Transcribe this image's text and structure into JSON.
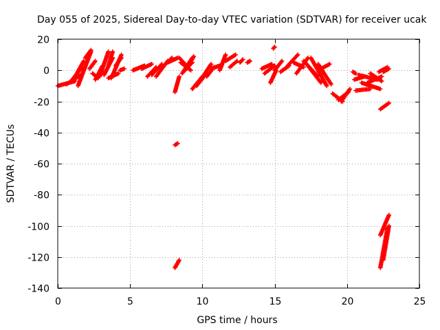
{
  "chart_data": {
    "type": "scatter",
    "title": "Day 055 of 2025, Sidereal Day-to-day VTEC variation (SDTVAR) for receiver ucak",
    "xlabel": "GPS time / hours",
    "ylabel": "SDTVAR / TECUs",
    "xlim": [
      0,
      25
    ],
    "ylim": [
      -140,
      20
    ],
    "xticks": [
      0,
      5,
      10,
      15,
      20,
      25
    ],
    "yticks": [
      -140,
      -120,
      -100,
      -80,
      -60,
      -40,
      -20,
      0,
      20
    ],
    "grid": true,
    "marker": "plus",
    "color": "#ff0000",
    "segments": [
      {
        "x0": 0.0,
        "x1": 1.2,
        "y0": -10,
        "y1": -7
      },
      {
        "x0": 0.6,
        "x1": 1.6,
        "y0": -9,
        "y1": -3
      },
      {
        "x0": 1.0,
        "x1": 1.7,
        "y0": -6,
        "y1": 2
      },
      {
        "x0": 1.4,
        "x1": 2.3,
        "y0": -10,
        "y1": 12
      },
      {
        "x0": 1.9,
        "x1": 2.3,
        "y0": 8,
        "y1": 13
      },
      {
        "x0": 1.2,
        "x1": 1.8,
        "y0": -4,
        "y1": 6
      },
      {
        "x0": 2.2,
        "x1": 2.6,
        "y0": 1,
        "y1": 6
      },
      {
        "x0": 2.4,
        "x1": 2.8,
        "y0": -2,
        "y1": -5
      },
      {
        "x0": 2.6,
        "x1": 3.1,
        "y0": -6,
        "y1": 3
      },
      {
        "x0": 2.9,
        "x1": 3.5,
        "y0": -4,
        "y1": 12
      },
      {
        "x0": 3.2,
        "x1": 3.8,
        "y0": -3,
        "y1": 8
      },
      {
        "x0": 3.5,
        "x1": 3.8,
        "y0": 3,
        "y1": 12
      },
      {
        "x0": 3.7,
        "x1": 4.4,
        "y0": -5,
        "y1": 10
      },
      {
        "x0": 4.0,
        "x1": 4.4,
        "y0": 3,
        "y1": 8
      },
      {
        "x0": 3.5,
        "x1": 4.2,
        "y0": -5,
        "y1": -2
      },
      {
        "x0": 4.3,
        "x1": 4.6,
        "y0": 0,
        "y1": 1
      },
      {
        "x0": 5.2,
        "x1": 6.0,
        "y0": 0,
        "y1": 3
      },
      {
        "x0": 5.8,
        "x1": 6.5,
        "y0": 1,
        "y1": 4
      },
      {
        "x0": 6.2,
        "x1": 6.8,
        "y0": -4,
        "y1": 2
      },
      {
        "x0": 6.5,
        "x1": 7.2,
        "y0": -3,
        "y1": 4
      },
      {
        "x0": 6.8,
        "x1": 7.6,
        "y0": -4,
        "y1": 6
      },
      {
        "x0": 7.1,
        "x1": 7.9,
        "y0": 1,
        "y1": 8
      },
      {
        "x0": 7.6,
        "x1": 8.3,
        "y0": 5,
        "y1": 8
      },
      {
        "x0": 8.4,
        "x1": 9.0,
        "y0": 8,
        "y1": 2
      },
      {
        "x0": 8.5,
        "x1": 9.2,
        "y0": 5,
        "y1": 0
      },
      {
        "x0": 8.6,
        "x1": 9.3,
        "y0": -2,
        "y1": 8
      },
      {
        "x0": 9.0,
        "x1": 9.4,
        "y0": 2,
        "y1": 9
      },
      {
        "x0": 8.8,
        "x1": 9.3,
        "y0": 0,
        "y1": 5
      },
      {
        "x0": 8.1,
        "x1": 8.4,
        "y0": -14,
        "y1": -4
      },
      {
        "x0": 8.1,
        "x1": 8.3,
        "y0": -48,
        "y1": -47
      },
      {
        "x0": 8.1,
        "x1": 8.4,
        "y0": -127,
        "y1": -122
      },
      {
        "x0": 9.3,
        "x1": 10.0,
        "y0": -12,
        "y1": -4
      },
      {
        "x0": 9.6,
        "x1": 10.3,
        "y0": -10,
        "y1": -2
      },
      {
        "x0": 9.9,
        "x1": 10.6,
        "y0": -6,
        "y1": 4
      },
      {
        "x0": 10.3,
        "x1": 10.8,
        "y0": -4,
        "y1": 2
      },
      {
        "x0": 10.6,
        "x1": 11.2,
        "y0": 1,
        "y1": 3
      },
      {
        "x0": 11.2,
        "x1": 11.6,
        "y0": 0,
        "y1": 10
      },
      {
        "x0": 11.6,
        "x1": 12.3,
        "y0": 6,
        "y1": 10
      },
      {
        "x0": 11.9,
        "x1": 12.4,
        "y0": 2,
        "y1": 6
      },
      {
        "x0": 12.6,
        "x1": 12.8,
        "y0": 5,
        "y1": 7
      },
      {
        "x0": 13.1,
        "x1": 13.3,
        "y0": 5,
        "y1": 6
      },
      {
        "x0": 14.1,
        "x1": 14.8,
        "y0": 1,
        "y1": 4
      },
      {
        "x0": 14.3,
        "x1": 15.0,
        "y0": -2,
        "y1": 3
      },
      {
        "x0": 14.7,
        "x1": 15.1,
        "y0": -8,
        "y1": 0
      },
      {
        "x0": 14.9,
        "x1": 15.0,
        "y0": 14,
        "y1": 15
      },
      {
        "x0": 15.0,
        "x1": 15.5,
        "y0": 0,
        "y1": 6
      },
      {
        "x0": 15.4,
        "x1": 16.0,
        "y0": -1,
        "y1": 3
      },
      {
        "x0": 15.9,
        "x1": 16.6,
        "y0": 3,
        "y1": 10
      },
      {
        "x0": 16.3,
        "x1": 17.0,
        "y0": 5,
        "y1": 2
      },
      {
        "x0": 16.5,
        "x1": 17.3,
        "y0": -2,
        "y1": 8
      },
      {
        "x0": 17.0,
        "x1": 18.0,
        "y0": 6,
        "y1": -4
      },
      {
        "x0": 17.2,
        "x1": 18.2,
        "y0": 4,
        "y1": -8
      },
      {
        "x0": 17.5,
        "x1": 18.6,
        "y0": 8,
        "y1": -10
      },
      {
        "x0": 18.0,
        "x1": 18.9,
        "y0": 4,
        "y1": -9
      },
      {
        "x0": 18.2,
        "x1": 18.8,
        "y0": 1,
        "y1": 4
      },
      {
        "x0": 19.0,
        "x1": 19.7,
        "y0": -15,
        "y1": -20
      },
      {
        "x0": 19.4,
        "x1": 20.1,
        "y0": -19,
        "y1": -14
      },
      {
        "x0": 19.6,
        "x1": 20.2,
        "y0": -20,
        "y1": -12
      },
      {
        "x0": 20.4,
        "x1": 20.6,
        "y0": -1,
        "y1": -2
      },
      {
        "x0": 20.5,
        "x1": 21.2,
        "y0": -6,
        "y1": -4
      },
      {
        "x0": 20.6,
        "x1": 21.6,
        "y0": -13,
        "y1": -12
      },
      {
        "x0": 21.0,
        "x1": 22.3,
        "y0": -8,
        "y1": -12
      },
      {
        "x0": 20.8,
        "x1": 22.1,
        "y0": -3,
        "y1": -6
      },
      {
        "x0": 21.4,
        "x1": 22.4,
        "y0": -8,
        "y1": -4
      },
      {
        "x0": 21.6,
        "x1": 22.4,
        "y0": -2,
        "y1": -7
      },
      {
        "x0": 22.2,
        "x1": 22.8,
        "y0": -1,
        "y1": 2
      },
      {
        "x0": 22.5,
        "x1": 22.9,
        "y0": -1,
        "y1": 1
      },
      {
        "x0": 22.3,
        "x1": 22.9,
        "y0": -25,
        "y1": -21
      },
      {
        "x0": 22.3,
        "x1": 22.9,
        "y0": -106,
        "y1": -93
      },
      {
        "x0": 22.3,
        "x1": 22.8,
        "y0": -127,
        "y1": -101
      },
      {
        "x0": 22.5,
        "x1": 22.9,
        "y0": -122,
        "y1": -100
      }
    ]
  }
}
